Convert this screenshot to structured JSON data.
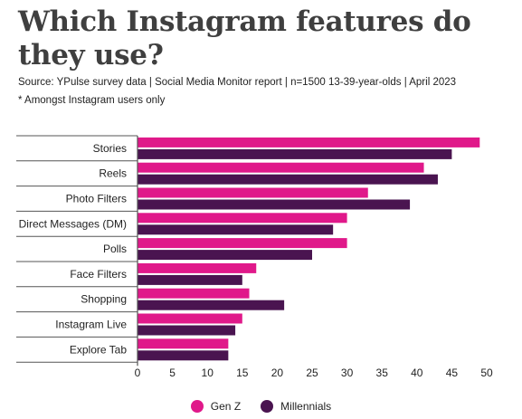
{
  "title": "Which Instagram features do they use?",
  "source": "Source: YPulse survey data | Social Media Monitor report | n=1500 13-39-year-olds | April 2023",
  "note": "* Amongst Instagram users only",
  "colors": {
    "genz": "#e0198a",
    "millennials": "#4a1450",
    "separator": "#555555",
    "axis": "#555555"
  },
  "chart_data": {
    "type": "bar",
    "orientation": "horizontal",
    "categories": [
      "Stories",
      "Reels",
      "Photo Filters",
      "Direct Messages (DM)",
      "Polls",
      "Face Filters",
      "Shopping",
      "Instagram Live",
      "Explore Tab"
    ],
    "series": [
      {
        "name": "Gen Z",
        "values": [
          49,
          41,
          33,
          30,
          30,
          17,
          16,
          15,
          13
        ]
      },
      {
        "name": "Millennials",
        "values": [
          45,
          43,
          39,
          28,
          25,
          15,
          21,
          14,
          13
        ]
      }
    ],
    "xlim": [
      0,
      50
    ],
    "xticks": [
      0,
      5,
      10,
      15,
      20,
      25,
      30,
      35,
      40,
      45,
      50
    ],
    "legend_position": "bottom-center",
    "grid": false
  }
}
